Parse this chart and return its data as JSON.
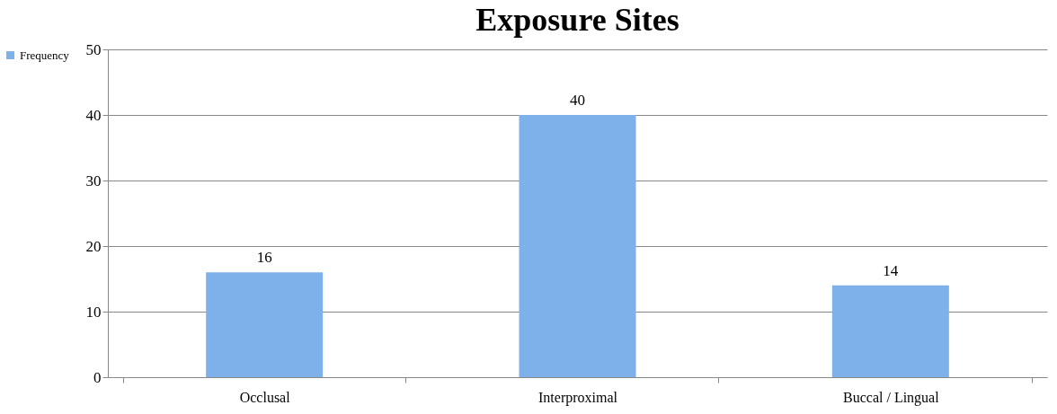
{
  "chart_data": {
    "type": "bar",
    "title": "Exposure Sites",
    "categories": [
      "Occlusal",
      "Interproximal",
      "Buccal / Lingual"
    ],
    "series": [
      {
        "name": "Frequency",
        "color": "#7eb0ea",
        "values": [
          16,
          40,
          14
        ]
      }
    ],
    "ylim": [
      0,
      50
    ],
    "yticks": [
      0,
      10,
      20,
      30,
      40,
      50
    ],
    "grid": "y",
    "legend": "left",
    "data_labels": true
  }
}
